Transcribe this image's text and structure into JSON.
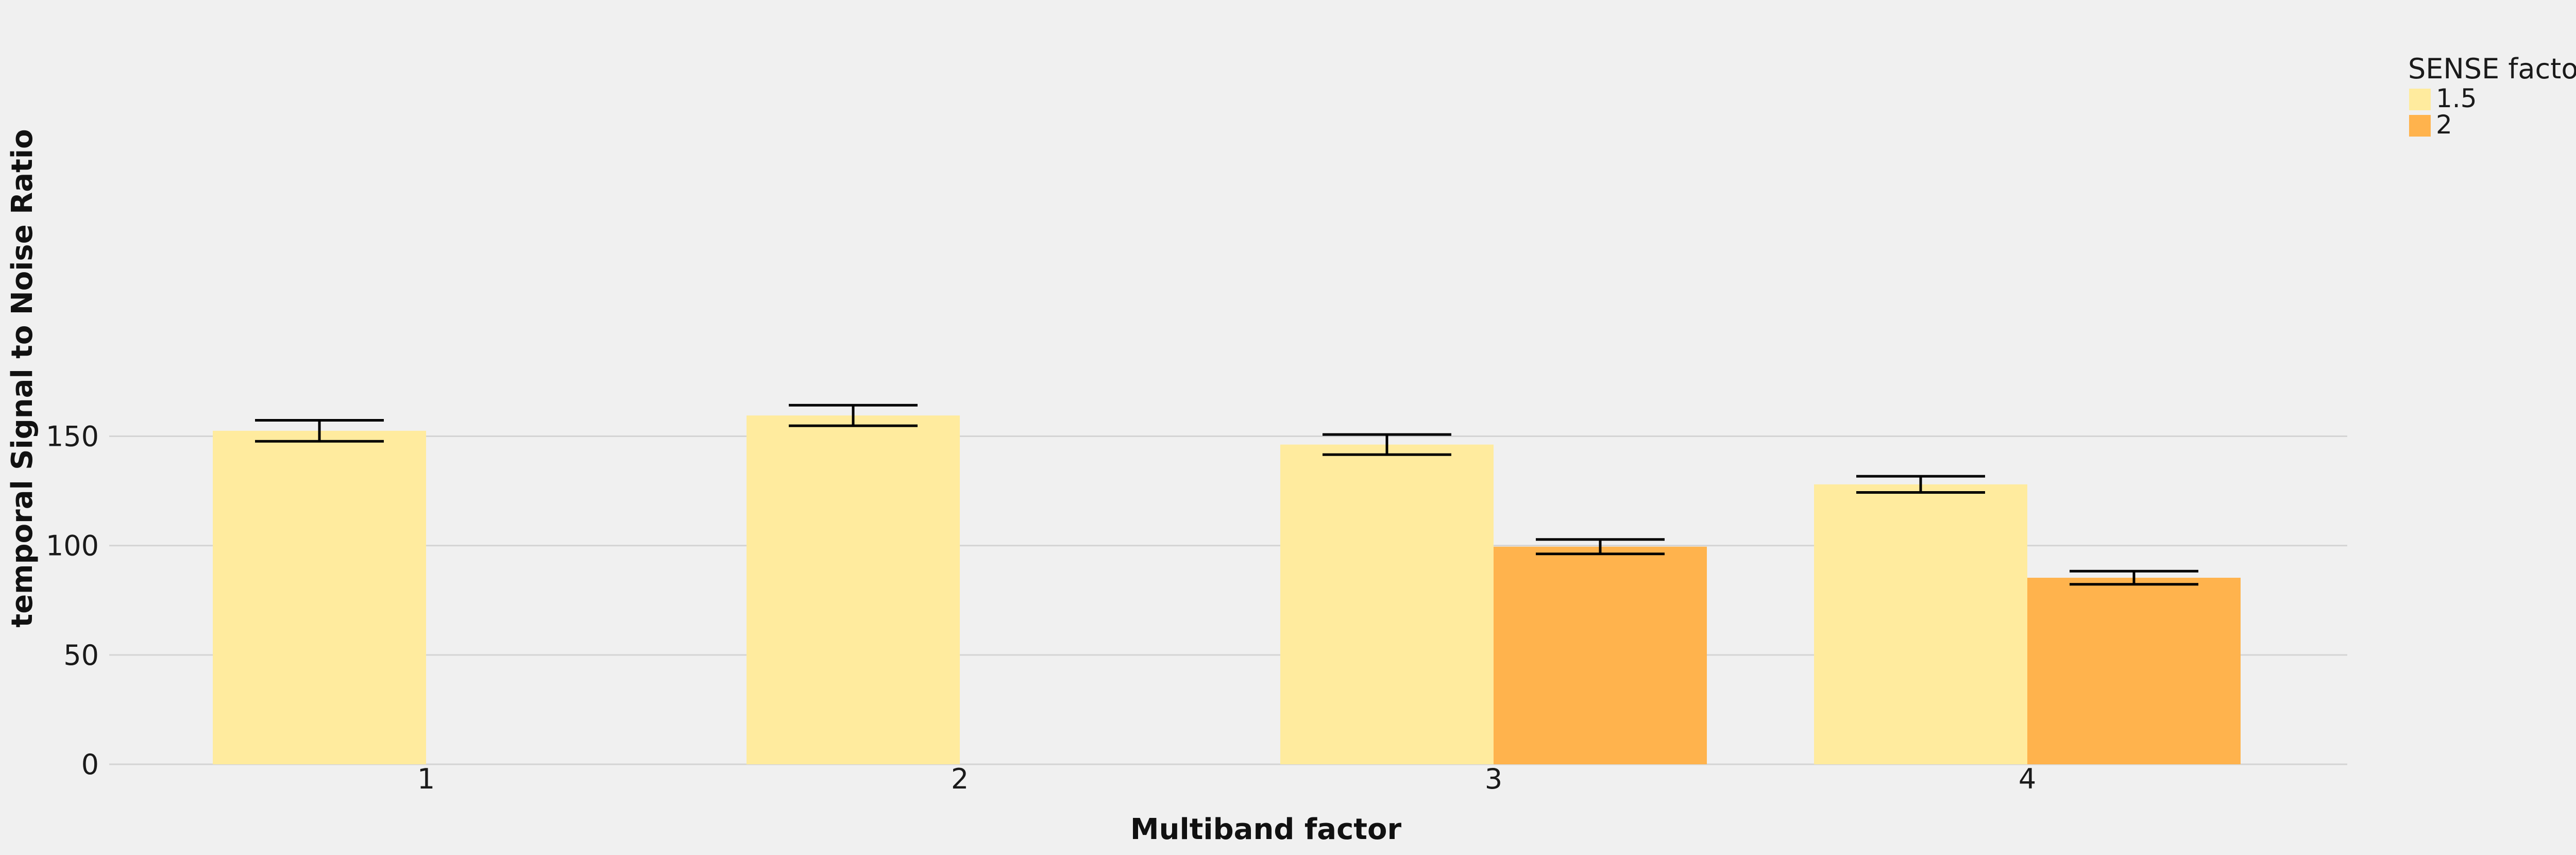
{
  "chart_data": {
    "type": "bar",
    "xlabel": "Multiband factor",
    "ylabel": "temporal Signal to Noise Ratio",
    "categories": [
      "1",
      "2",
      "3",
      "4"
    ],
    "yticks": [
      0,
      50,
      100,
      150
    ],
    "ylim": [
      0,
      160
    ],
    "grid": true,
    "legend": {
      "title": "SENSE factor",
      "placement": "top-right outside"
    },
    "series": [
      {
        "name": "1.5",
        "color": "#ffeb9e",
        "values": [
          152.5,
          159.5,
          146.2,
          128.0
        ],
        "error": [
          4.8,
          4.7,
          4.6,
          3.7
        ]
      },
      {
        "name": "2",
        "color": "#ffb34d",
        "values": [
          null,
          null,
          99.5,
          85.3
        ],
        "error": [
          null,
          null,
          3.3,
          3.0
        ]
      }
    ]
  }
}
